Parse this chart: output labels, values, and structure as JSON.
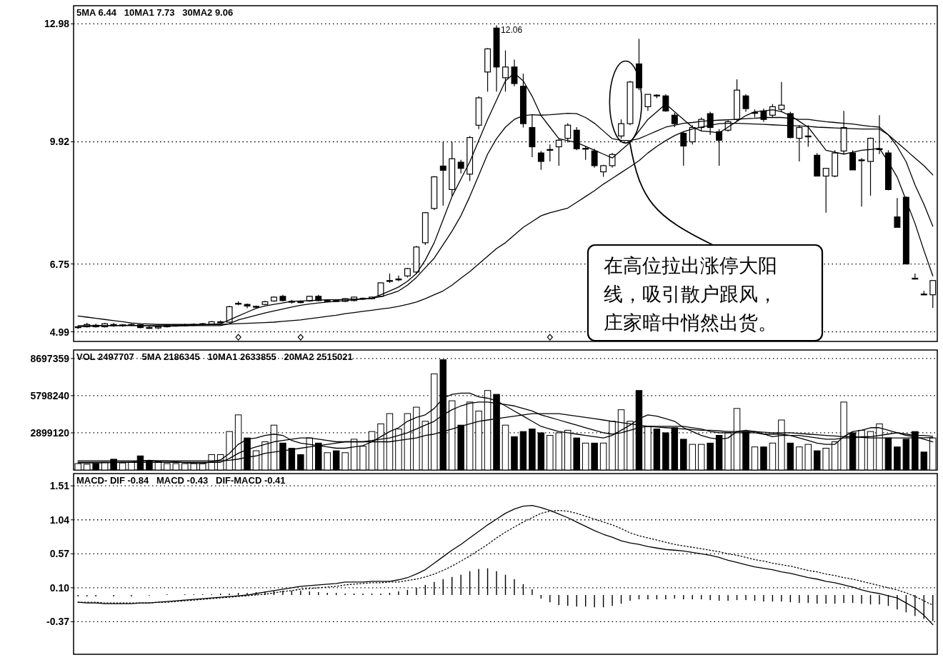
{
  "chart_data": [
    {
      "type": "candlestick",
      "grid": "y",
      "ylim": [
        4.74,
        13.45
      ],
      "yticks": [
        4.99,
        6.75,
        9.92,
        12.98
      ],
      "categories": [
        null,
        null,
        null,
        null,
        null,
        null,
        null,
        null,
        null,
        null,
        null,
        null,
        null,
        null,
        null,
        null,
        null,
        null,
        null,
        null,
        null,
        null,
        null,
        null,
        null,
        null,
        null,
        null,
        null,
        null,
        null,
        null,
        null,
        null,
        null,
        null,
        null,
        null,
        null,
        null,
        null,
        null,
        null,
        null,
        null,
        null,
        null,
        null,
        null,
        null,
        null,
        null,
        null,
        null,
        null,
        null,
        null,
        null,
        null,
        null,
        null,
        null,
        null,
        null,
        null,
        null,
        null,
        null,
        null,
        null,
        null,
        null,
        null,
        null,
        null,
        null,
        null,
        null,
        null,
        null,
        null,
        null,
        null,
        null,
        null,
        null,
        null,
        null,
        null,
        null,
        null,
        null,
        null,
        null,
        null,
        null,
        null
      ],
      "ohlc": [
        [
          5.1,
          5.14,
          5.06,
          5.12
        ],
        [
          5.12,
          5.22,
          5.1,
          5.18
        ],
        [
          5.16,
          5.2,
          5.1,
          5.12
        ],
        [
          5.12,
          5.22,
          5.1,
          5.2
        ],
        [
          5.18,
          5.22,
          5.12,
          5.15
        ],
        [
          5.15,
          5.19,
          5.12,
          5.17
        ],
        [
          5.17,
          5.21,
          5.14,
          5.18
        ],
        [
          5.17,
          5.19,
          5.08,
          5.1
        ],
        [
          5.1,
          5.14,
          5.07,
          5.09
        ],
        [
          5.09,
          5.13,
          5.06,
          5.12
        ],
        [
          5.12,
          5.16,
          5.1,
          5.15
        ],
        [
          5.15,
          5.18,
          5.12,
          5.16
        ],
        [
          5.16,
          5.2,
          5.13,
          5.17
        ],
        [
          5.17,
          5.21,
          5.14,
          5.18
        ],
        [
          5.18,
          5.22,
          5.15,
          5.2
        ],
        [
          5.19,
          5.27,
          5.17,
          5.25
        ],
        [
          5.24,
          5.28,
          5.22,
          5.25
        ],
        [
          5.24,
          5.66,
          5.22,
          5.64
        ],
        [
          5.72,
          5.78,
          5.68,
          5.73
        ],
        [
          5.7,
          5.72,
          5.6,
          5.66
        ],
        [
          5.64,
          5.67,
          5.62,
          5.65
        ],
        [
          5.7,
          5.79,
          5.68,
          5.77
        ],
        [
          5.79,
          5.91,
          5.77,
          5.89
        ],
        [
          5.91,
          5.95,
          5.78,
          5.8
        ],
        [
          5.78,
          5.82,
          5.72,
          5.77
        ],
        [
          5.77,
          5.8,
          5.73,
          5.76
        ],
        [
          5.79,
          5.92,
          5.77,
          5.91
        ],
        [
          5.91,
          5.95,
          5.78,
          5.8
        ],
        [
          5.8,
          5.83,
          5.77,
          5.8
        ],
        [
          5.8,
          5.82,
          5.77,
          5.79
        ],
        [
          5.78,
          5.86,
          5.76,
          5.85
        ],
        [
          5.8,
          5.9,
          5.78,
          5.89
        ],
        [
          5.85,
          5.88,
          5.82,
          5.86
        ],
        [
          5.85,
          5.9,
          5.83,
          5.89
        ],
        [
          5.91,
          6.27,
          5.89,
          6.26
        ],
        [
          6.3,
          6.5,
          6.26,
          6.32
        ],
        [
          6.34,
          6.45,
          6.3,
          6.36
        ],
        [
          6.44,
          6.65,
          6.4,
          6.63
        ],
        [
          6.54,
          7.22,
          6.5,
          7.19
        ],
        [
          7.3,
          8.1,
          7.24,
          8.08
        ],
        [
          8.19,
          9.03,
          8.15,
          9.01
        ],
        [
          9.29,
          9.92,
          8.26,
          9.18
        ],
        [
          8.68,
          9.92,
          8.52,
          9.48
        ],
        [
          9.39,
          9.45,
          9.1,
          9.23
        ],
        [
          9.08,
          10.07,
          8.9,
          10.03
        ],
        [
          10.35,
          11.1,
          10.25,
          11.06
        ],
        [
          11.73,
          12.35,
          11.22,
          12.33
        ],
        [
          12.87,
          12.94,
          11.22,
          11.86
        ],
        [
          11.58,
          12.29,
          11.22,
          11.86
        ],
        [
          11.86,
          12.05,
          11.36,
          11.43
        ],
        [
          11.36,
          11.69,
          10.29,
          10.39
        ],
        [
          10.29,
          10.61,
          9.52,
          9.79
        ],
        [
          9.63,
          9.68,
          9.19,
          9.41
        ],
        [
          9.7,
          9.85,
          9.41,
          9.72
        ],
        [
          9.79,
          9.99,
          9.3,
          9.96
        ],
        [
          10.01,
          10.4,
          9.9,
          10.35
        ],
        [
          10.22,
          10.3,
          9.7,
          9.74
        ],
        [
          9.74,
          9.8,
          9.45,
          9.75
        ],
        [
          9.68,
          9.74,
          9.25,
          9.3
        ],
        [
          9.14,
          9.32,
          9.01,
          9.3
        ],
        [
          9.3,
          9.63,
          9.25,
          9.59
        ],
        [
          10.07,
          10.5,
          10.0,
          10.39
        ],
        [
          10.39,
          11.5,
          10.35,
          11.47
        ],
        [
          11.94,
          12.59,
          11.26,
          11.32
        ],
        [
          10.83,
          11.15,
          10.72,
          11.15
        ],
        [
          11.13,
          11.15,
          11.05,
          11.11
        ],
        [
          11.11,
          11.15,
          10.7,
          10.72
        ],
        [
          10.61,
          10.67,
          10.3,
          10.39
        ],
        [
          10.14,
          10.18,
          9.3,
          9.81
        ],
        [
          9.92,
          10.35,
          9.85,
          10.29
        ],
        [
          10.29,
          10.55,
          10.2,
          10.5
        ],
        [
          10.65,
          10.7,
          10.1,
          10.29
        ],
        [
          10.18,
          10.25,
          9.3,
          9.96
        ],
        [
          10.22,
          10.5,
          10.18,
          10.44
        ],
        [
          10.5,
          11.54,
          10.45,
          11.26
        ],
        [
          11.11,
          11.15,
          10.7,
          10.78
        ],
        [
          10.67,
          10.76,
          10.55,
          10.68
        ],
        [
          10.72,
          10.78,
          10.44,
          10.5
        ],
        [
          10.61,
          10.9,
          10.55,
          10.83
        ],
        [
          10.76,
          11.47,
          10.7,
          10.87
        ],
        [
          10.65,
          10.7,
          10.01,
          10.03
        ],
        [
          10.01,
          10.35,
          9.41,
          10.29
        ],
        [
          10.07,
          10.35,
          9.79,
          10.07
        ],
        [
          9.57,
          9.63,
          9.03,
          9.03
        ],
        [
          9.03,
          9.23,
          8.08,
          9.23
        ],
        [
          9.03,
          9.7,
          9.0,
          9.63
        ],
        [
          9.68,
          10.72,
          9.6,
          10.29
        ],
        [
          9.63,
          9.7,
          9.19,
          9.19
        ],
        [
          9.45,
          9.5,
          8.24,
          9.45
        ],
        [
          9.41,
          10.03,
          8.52,
          10.01
        ],
        [
          9.74,
          10.61,
          9.6,
          9.74
        ],
        [
          9.63,
          9.7,
          8.66,
          8.68
        ],
        [
          7.97,
          8.46,
          7.7,
          7.7
        ],
        [
          8.48,
          8.5,
          6.75,
          6.75
        ],
        [
          6.38,
          6.5,
          6.36,
          6.38
        ],
        [
          5.97,
          6.05,
          5.95,
          5.97
        ],
        [
          5.95,
          6.32,
          5.61,
          6.32
        ]
      ],
      "series": [
        {
          "type": "line",
          "line_style": "solid",
          "color": "#000000",
          "values": [
            5.12,
            5.13,
            5.14,
            5.15,
            5.15,
            5.16,
            5.16,
            5.15,
            5.14,
            5.13,
            5.13,
            5.14,
            5.15,
            5.16,
            5.17,
            5.18,
            5.2,
            5.3,
            5.4,
            5.5,
            5.6,
            5.66,
            5.7,
            5.74,
            5.78,
            5.79,
            5.8,
            5.81,
            5.82,
            5.82,
            5.83,
            5.84,
            5.84,
            5.86,
            5.95,
            6.05,
            6.15,
            6.3,
            6.5,
            6.85,
            7.3,
            7.9,
            8.5,
            8.95,
            9.4,
            9.95,
            10.5,
            11.0,
            11.5,
            11.7,
            11.5,
            11.1,
            10.6,
            10.3,
            10.0,
            9.95,
            9.9,
            9.8,
            9.7,
            9.6,
            9.5,
            9.7,
            9.9,
            10.2,
            10.5,
            10.7,
            10.9,
            10.7,
            10.5,
            10.3,
            10.2,
            10.18,
            10.15,
            10.3,
            10.45,
            10.6,
            10.7,
            10.72,
            10.75,
            10.7,
            10.6,
            10.45,
            10.3,
            10.0,
            9.7,
            9.65,
            9.6,
            9.65,
            9.7,
            9.72,
            9.75,
            9.4,
            9.0,
            8.4,
            7.8,
            7.1,
            6.44
          ]
        },
        {
          "type": "line",
          "line_style": "solid",
          "color": "#000000",
          "values": [
            5.15,
            5.15,
            5.15,
            5.15,
            5.15,
            5.15,
            5.15,
            5.15,
            5.15,
            5.15,
            5.15,
            5.15,
            5.15,
            5.15,
            5.15,
            5.15,
            5.15,
            5.2,
            5.3,
            5.36,
            5.42,
            5.48,
            5.53,
            5.58,
            5.63,
            5.68,
            5.71,
            5.74,
            5.76,
            5.78,
            5.8,
            5.82,
            5.84,
            5.86,
            5.9,
            5.97,
            6.05,
            6.2,
            6.4,
            6.65,
            6.9,
            7.25,
            7.6,
            8.0,
            8.5,
            9.05,
            9.6,
            10.0,
            10.3,
            10.5,
            10.6,
            10.62,
            10.61,
            10.62,
            10.64,
            10.66,
            10.65,
            10.55,
            10.4,
            10.2,
            10.0,
            9.96,
            9.95,
            10.0,
            10.1,
            10.2,
            10.3,
            10.35,
            10.4,
            10.42,
            10.45,
            10.47,
            10.48,
            10.49,
            10.5,
            10.52,
            10.53,
            10.55,
            10.55,
            10.55,
            10.53,
            10.5,
            10.5,
            10.47,
            10.44,
            10.42,
            10.4,
            10.38,
            10.35,
            10.32,
            10.3,
            10.1,
            9.8,
            9.4,
            8.8,
            8.3,
            7.73
          ]
        },
        {
          "type": "line",
          "line_style": "solid",
          "color": "#000000",
          "values": [
            5.4,
            5.37,
            5.34,
            5.31,
            5.28,
            5.25,
            5.22,
            5.2,
            5.19,
            5.18,
            5.18,
            5.18,
            5.18,
            5.18,
            5.18,
            5.18,
            5.18,
            5.19,
            5.2,
            5.21,
            5.22,
            5.23,
            5.24,
            5.26,
            5.28,
            5.3,
            5.33,
            5.36,
            5.39,
            5.42,
            5.46,
            5.49,
            5.52,
            5.55,
            5.58,
            5.61,
            5.65,
            5.7,
            5.76,
            5.85,
            5.95,
            6.05,
            6.2,
            6.38,
            6.55,
            6.75,
            6.95,
            7.15,
            7.3,
            7.5,
            7.7,
            7.85,
            8.0,
            8.08,
            8.14,
            8.2,
            8.35,
            8.5,
            8.65,
            8.82,
            8.97,
            9.12,
            9.27,
            9.43,
            9.63,
            9.8,
            9.95,
            10.08,
            10.18,
            10.25,
            10.3,
            10.35,
            10.39,
            10.4,
            10.4,
            10.39,
            10.38,
            10.37,
            10.36,
            10.35,
            10.34,
            10.33,
            10.32,
            10.3,
            10.29,
            10.28,
            10.27,
            10.26,
            10.25,
            10.25,
            10.25,
            10.1,
            9.9,
            9.7,
            9.5,
            9.3,
            9.06
          ]
        },
        {
          "type": "scatter",
          "marker": "diamond",
          "color": "#000000",
          "values": [
            null,
            null,
            null,
            null,
            null,
            null,
            null,
            null,
            null,
            null,
            null,
            null,
            null,
            null,
            null,
            null,
            null,
            null,
            4.85,
            null,
            null,
            null,
            null,
            null,
            null,
            4.85,
            null,
            null,
            null,
            null,
            null,
            null,
            null,
            null,
            null,
            null,
            null,
            null,
            null,
            null,
            null,
            null,
            null,
            null,
            null,
            null,
            null,
            null,
            null,
            null,
            null,
            null,
            null,
            4.85,
            null,
            null,
            null,
            null,
            null,
            null,
            null,
            null,
            null,
            null,
            null,
            null,
            null,
            null,
            null,
            null,
            null,
            null,
            null,
            null,
            null,
            null,
            null,
            null,
            null,
            null,
            null,
            null,
            null,
            null,
            null,
            null,
            null,
            null,
            null,
            null,
            null,
            null,
            null,
            null,
            null,
            null,
            null
          ]
        }
      ],
      "annotations": [
        "5MA 6.44   10MA1 7.73   30MA2 9.06",
        "12.06",
        "在高位拉出涨停大阳线，吸引散户跟风，庄家暗中悄然出货。"
      ]
    },
    {
      "type": "bar",
      "grid": "y",
      "ylim": [
        0,
        9360000
      ],
      "yticks": [
        2899120,
        5798240,
        8697359
      ],
      "categories": [
        null,
        null,
        null,
        null,
        null,
        null,
        null,
        null,
        null,
        null,
        null,
        null,
        null,
        null,
        null,
        null,
        null,
        null,
        null,
        null,
        null,
        null,
        null,
        null,
        null,
        null,
        null,
        null,
        null,
        null,
        null,
        null,
        null,
        null,
        null,
        null,
        null,
        null,
        null,
        null,
        null,
        null,
        null,
        null,
        null,
        null,
        null,
        null,
        null,
        null,
        null,
        null,
        null,
        null,
        null,
        null,
        null,
        null,
        null,
        null,
        null,
        null,
        null,
        null,
        null,
        null,
        null,
        null,
        null,
        null,
        null,
        null,
        null,
        null,
        null,
        null,
        null,
        null,
        null,
        null,
        null,
        null,
        null,
        null,
        null,
        null,
        null,
        null,
        null,
        null,
        null,
        null,
        null,
        null,
        null,
        null,
        null
      ],
      "series": [
        {
          "type": "bar",
          "values": [
            500000,
            450000,
            500000,
            600000,
            840000,
            550000,
            600000,
            1100000,
            700000,
            650000,
            500000,
            500000,
            500000,
            500000,
            500000,
            1200000,
            1200000,
            3000000,
            4300000,
            2500000,
            1500000,
            2200000,
            3500000,
            2100000,
            1700000,
            1200000,
            2500000,
            2100000,
            1350000,
            1500000,
            1350000,
            2400000,
            1850000,
            3000000,
            3600000,
            4400000,
            3200000,
            4400000,
            4900000,
            3800000,
            7500000,
            8600000,
            5400000,
            3500000,
            5300000,
            4600000,
            6200000,
            5900000,
            3500000,
            2600000,
            3000000,
            3200000,
            2900000,
            2700000,
            2900000,
            3100000,
            2500000,
            2100000,
            2100000,
            2100000,
            3800000,
            4700000,
            3800000,
            6200000,
            3400000,
            3200000,
            2900000,
            3300000,
            2400000,
            2000000,
            2000000,
            2100000,
            2700000,
            2900000,
            4800000,
            3000000,
            1800000,
            1800000,
            2100000,
            3900000,
            2100000,
            1800000,
            2000000,
            1500000,
            1700000,
            2200000,
            5300000,
            2900000,
            3100000,
            3000000,
            3600000,
            2500000,
            1800000,
            2400000,
            3000000,
            1400000,
            2500000
          ],
          "colors": [
            "#ffffff",
            "#ffffff",
            "#000000",
            "#ffffff",
            "#000000",
            "#ffffff",
            "#ffffff",
            "#000000",
            "#000000",
            "#ffffff",
            "#ffffff",
            "#ffffff",
            "#ffffff",
            "#ffffff",
            "#ffffff",
            "#ffffff",
            "#ffffff",
            "#ffffff",
            "#ffffff",
            "#000000",
            "#ffffff",
            "#ffffff",
            "#ffffff",
            "#000000",
            "#000000",
            "#000000",
            "#ffffff",
            "#000000",
            "#ffffff",
            "#000000",
            "#ffffff",
            "#ffffff",
            "#ffffff",
            "#ffffff",
            "#ffffff",
            "#ffffff",
            "#ffffff",
            "#ffffff",
            "#ffffff",
            "#ffffff",
            "#ffffff",
            "#000000",
            "#ffffff",
            "#000000",
            "#ffffff",
            "#ffffff",
            "#ffffff",
            "#000000",
            "#ffffff",
            "#000000",
            "#000000",
            "#000000",
            "#000000",
            "#ffffff",
            "#ffffff",
            "#ffffff",
            "#000000",
            "#ffffff",
            "#000000",
            "#ffffff",
            "#ffffff",
            "#ffffff",
            "#ffffff",
            "#000000",
            "#ffffff",
            "#000000",
            "#000000",
            "#000000",
            "#000000",
            "#ffffff",
            "#ffffff",
            "#000000",
            "#000000",
            "#ffffff",
            "#ffffff",
            "#000000",
            "#ffffff",
            "#000000",
            "#ffffff",
            "#ffffff",
            "#000000",
            "#ffffff",
            "#ffffff",
            "#000000",
            "#ffffff",
            "#ffffff",
            "#ffffff",
            "#000000",
            "#ffffff",
            "#ffffff",
            "#ffffff",
            "#000000",
            "#000000",
            "#000000",
            "#000000",
            "#000000",
            "#ffffff"
          ]
        },
        {
          "type": "line",
          "line_style": "solid",
          "color": "#000000",
          "values": [
            550000,
            550000,
            550000,
            560000,
            580000,
            600000,
            620000,
            700000,
            760000,
            700000,
            700000,
            650000,
            560000,
            520000,
            500000,
            650000,
            780000,
            1300000,
            2000000,
            2400000,
            2500000,
            2700000,
            2800000,
            2700000,
            2300000,
            2100000,
            2000000,
            1900000,
            1800000,
            1700000,
            1700000,
            1800000,
            1900000,
            2200000,
            2600000,
            3000000,
            3300000,
            3800000,
            4100000,
            4300000,
            4800000,
            5600000,
            5900000,
            6000000,
            6000000,
            5700000,
            5600000,
            5400000,
            5000000,
            4600000,
            4200000,
            3800000,
            3400000,
            3200000,
            3000000,
            2900000,
            2800000,
            2700000,
            2600000,
            2500000,
            2700000,
            3100000,
            3500000,
            4000000,
            4300000,
            4200000,
            4000000,
            3800000,
            3300000,
            3000000,
            2700000,
            2500000,
            2400000,
            2500000,
            3000000,
            3100000,
            3000000,
            2800000,
            2600000,
            2700000,
            2700000,
            2500000,
            2300000,
            2100000,
            2000000,
            2000000,
            2600000,
            3000000,
            3100000,
            3300000,
            3300000,
            3100000,
            2900000,
            2700000,
            2600000,
            2400000,
            2190000
          ]
        },
        {
          "type": "line",
          "line_style": "solid",
          "color": "#000000",
          "values": [
            600000,
            600000,
            600000,
            600000,
            600000,
            600000,
            600000,
            600000,
            600000,
            600000,
            600000,
            600000,
            600000,
            600000,
            600000,
            600000,
            600000,
            900000,
            1300000,
            1600000,
            1800000,
            2000000,
            2200000,
            2300000,
            2400000,
            2500000,
            2500000,
            2400000,
            2300000,
            2200000,
            2200000,
            2200000,
            2200000,
            2300000,
            2400000,
            2500000,
            2700000,
            2900000,
            3200000,
            3500000,
            3800000,
            4300000,
            4700000,
            5000000,
            5200000,
            5300000,
            5300000,
            5200000,
            5100000,
            5000000,
            4800000,
            4600000,
            4300000,
            4100000,
            3900000,
            3700000,
            3500000,
            3300000,
            3100000,
            2900000,
            2800000,
            2900000,
            3100000,
            3300000,
            3400000,
            3400000,
            3400000,
            3400000,
            3400000,
            3300000,
            3200000,
            3000000,
            2900000,
            2900000,
            2900000,
            2900000,
            2900000,
            2800000,
            2800000,
            2800000,
            2700000,
            2700000,
            2600000,
            2500000,
            2400000,
            2400000,
            2500000,
            2500000,
            2600000,
            2600000,
            2700000,
            2800000,
            2900000,
            2800000,
            2700000,
            2700000,
            2630000
          ]
        },
        {
          "type": "line",
          "line_style": "solid",
          "color": "#000000",
          "values": [
            720000,
            720000,
            720000,
            720000,
            720000,
            720000,
            720000,
            720000,
            720000,
            720000,
            720000,
            720000,
            720000,
            720000,
            720000,
            720000,
            720000,
            760000,
            850000,
            1000000,
            1100000,
            1300000,
            1400000,
            1500000,
            1600000,
            1700000,
            1800000,
            1900000,
            2000000,
            2100000,
            2200000,
            2200000,
            2200000,
            2200000,
            2200000,
            2200000,
            2300000,
            2400000,
            2500000,
            2700000,
            2800000,
            3000000,
            3200000,
            3400000,
            3600000,
            3800000,
            3900000,
            4000000,
            4100000,
            4200000,
            4300000,
            4400000,
            4400000,
            4400000,
            4400000,
            4300000,
            4200000,
            4100000,
            4000000,
            3900000,
            3800000,
            3700000,
            3600000,
            3500000,
            3400000,
            3350000,
            3300000,
            3250000,
            3200000,
            3150000,
            3100000,
            3100000,
            3050000,
            3000000,
            3000000,
            3000000,
            3000000,
            2950000,
            2900000,
            2900000,
            2900000,
            2850000,
            2800000,
            2750000,
            2700000,
            2650000,
            2600000,
            2600000,
            2550000,
            2500000,
            2500000,
            2500000,
            2500000,
            2500000,
            2510000,
            2510000,
            2520000
          ]
        }
      ],
      "annotations": [
        "VOL 2497707   5MA 2186345   10MA1 2633855   20MA2 2515021"
      ]
    },
    {
      "type": "line",
      "grid": "y",
      "ylim": [
        -0.82,
        1.68
      ],
      "yticks": [
        -0.37,
        {
          "value": 0.1,
          "label": "0.10"
        },
        0.57,
        1.04,
        1.51
      ],
      "categories": [
        null,
        null,
        null,
        null,
        null,
        null,
        null,
        null,
        null,
        null,
        null,
        null,
        null,
        null,
        null,
        null,
        null,
        null,
        null,
        null,
        null,
        null,
        null,
        null,
        null,
        null,
        null,
        null,
        null,
        null,
        null,
        null,
        null,
        null,
        null,
        null,
        null,
        null,
        null,
        null,
        null,
        null,
        null,
        null,
        null,
        null,
        null,
        null,
        null,
        null,
        null,
        null,
        null,
        null,
        null,
        null,
        null,
        null,
        null,
        null,
        null,
        null,
        null,
        null,
        null,
        null,
        null,
        null,
        null,
        null,
        null,
        null,
        null,
        null,
        null,
        null,
        null,
        null,
        null,
        null,
        null,
        null,
        null,
        null,
        null,
        null,
        null,
        null,
        null,
        null,
        null,
        null,
        null,
        null,
        null,
        null,
        null
      ],
      "series": [
        {
          "type": "line",
          "line_style": "solid",
          "color": "#000000",
          "values": [
            -0.1,
            -0.11,
            -0.11,
            -0.12,
            -0.12,
            -0.12,
            -0.12,
            -0.11,
            -0.11,
            -0.1,
            -0.09,
            -0.08,
            -0.07,
            -0.06,
            -0.05,
            -0.04,
            -0.03,
            -0.02,
            -0.01,
            0.0,
            0.02,
            0.04,
            0.06,
            0.08,
            0.1,
            0.12,
            0.13,
            0.14,
            0.15,
            0.16,
            0.18,
            0.18,
            0.18,
            0.19,
            0.19,
            0.19,
            0.21,
            0.24,
            0.29,
            0.35,
            0.44,
            0.53,
            0.62,
            0.7,
            0.79,
            0.88,
            0.97,
            1.05,
            1.13,
            1.19,
            1.23,
            1.24,
            1.21,
            1.17,
            1.12,
            1.07,
            1.01,
            0.95,
            0.89,
            0.84,
            0.8,
            0.75,
            0.72,
            0.7,
            0.67,
            0.65,
            0.63,
            0.62,
            0.61,
            0.59,
            0.57,
            0.55,
            0.52,
            0.48,
            0.45,
            0.42,
            0.39,
            0.37,
            0.35,
            0.32,
            0.3,
            0.27,
            0.24,
            0.22,
            0.19,
            0.17,
            0.14,
            0.11,
            0.07,
            0.04,
            0.02,
            -0.01,
            -0.04,
            -0.11,
            -0.18,
            -0.28,
            -0.41
          ]
        },
        {
          "type": "line",
          "line_style": "dotted",
          "color": "#000000",
          "values": [
            -0.1,
            -0.1,
            -0.1,
            -0.11,
            -0.11,
            -0.11,
            -0.11,
            -0.11,
            -0.11,
            -0.1,
            -0.1,
            -0.09,
            -0.08,
            -0.07,
            -0.06,
            -0.05,
            -0.04,
            -0.03,
            -0.02,
            -0.01,
            0.0,
            0.01,
            0.03,
            0.05,
            0.06,
            0.08,
            0.09,
            0.1,
            0.11,
            0.12,
            0.14,
            0.15,
            0.16,
            0.17,
            0.17,
            0.18,
            0.18,
            0.2,
            0.22,
            0.25,
            0.29,
            0.34,
            0.4,
            0.47,
            0.54,
            0.62,
            0.7,
            0.79,
            0.87,
            0.94,
            1.01,
            1.07,
            1.13,
            1.16,
            1.17,
            1.16,
            1.13,
            1.09,
            1.05,
            1.01,
            0.97,
            0.92,
            0.86,
            0.82,
            0.79,
            0.76,
            0.73,
            0.7,
            0.68,
            0.66,
            0.64,
            0.62,
            0.6,
            0.57,
            0.55,
            0.52,
            0.49,
            0.47,
            0.44,
            0.42,
            0.4,
            0.37,
            0.34,
            0.32,
            0.29,
            0.27,
            0.24,
            0.22,
            0.19,
            0.16,
            0.13,
            0.1,
            0.07,
            0.03,
            -0.02,
            -0.08,
            -0.14
          ]
        },
        {
          "type": "bar",
          "color": "#000000",
          "values": [
            -0.02,
            -0.02,
            -0.02,
            null,
            -0.02,
            null,
            -0.02,
            null,
            -0.01,
            null,
            0.01,
            null,
            0.01,
            0.01,
            0.01,
            0.01,
            0.02,
            0.02,
            0.03,
            0.03,
            0.04,
            0.05,
            0.06,
            0.06,
            0.06,
            0.06,
            0.05,
            0.04,
            0.03,
            0.03,
            0.02,
            0.02,
            0.02,
            0.02,
            0.02,
            0.03,
            0.05,
            0.07,
            0.1,
            0.14,
            0.18,
            0.22,
            0.25,
            0.28,
            0.33,
            0.36,
            0.37,
            0.33,
            0.28,
            0.22,
            0.15,
            0.08,
            -0.05,
            -0.1,
            -0.14,
            -0.15,
            -0.16,
            -0.16,
            -0.17,
            -0.17,
            -0.15,
            -0.12,
            -0.08,
            -0.06,
            -0.06,
            -0.06,
            -0.06,
            -0.05,
            -0.06,
            -0.06,
            -0.06,
            -0.07,
            -0.08,
            -0.08,
            -0.07,
            -0.07,
            -0.08,
            -0.09,
            -0.09,
            -0.09,
            -0.1,
            -0.11,
            -0.11,
            -0.12,
            -0.12,
            -0.12,
            -0.11,
            -0.11,
            -0.12,
            -0.13,
            -0.13,
            -0.15,
            -0.2,
            -0.24,
            -0.29,
            -0.33,
            -0.36
          ]
        }
      ],
      "annotations": [
        "MACD- DIF -0.84   MACD -0.43   DIF-MACD -0.41"
      ]
    }
  ]
}
